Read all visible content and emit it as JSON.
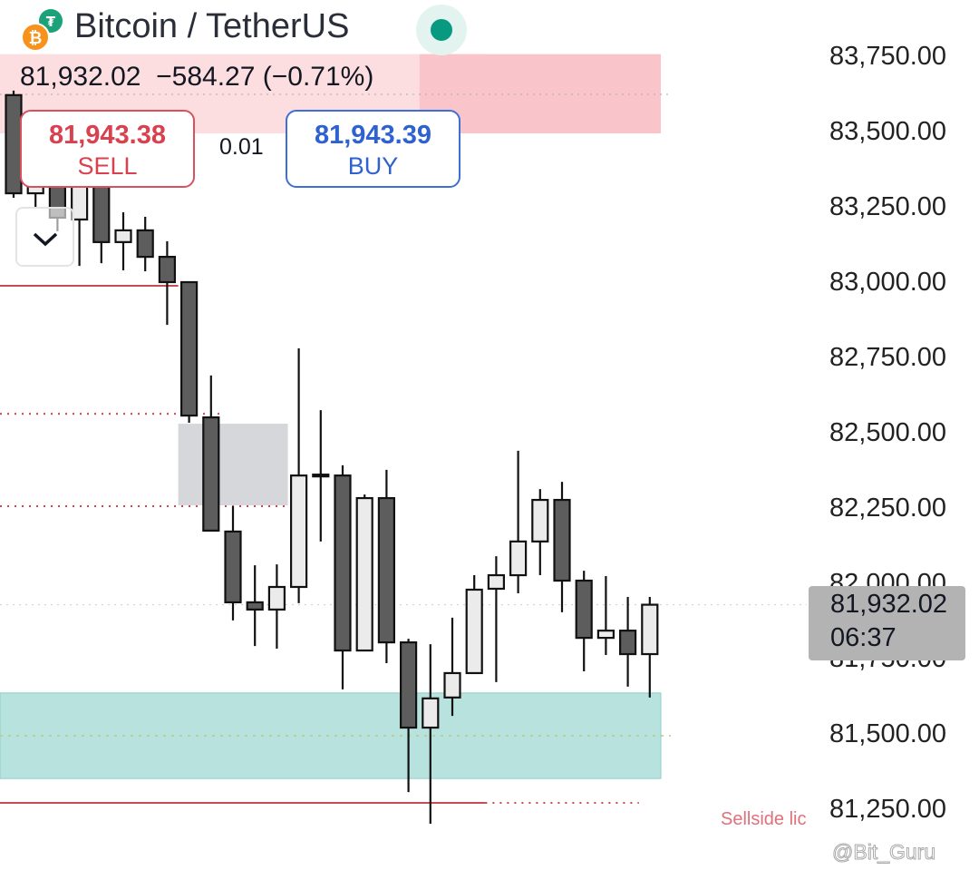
{
  "header": {
    "title": "Bitcoin / TetherUS",
    "base_icon": "bitcoin-icon",
    "quote_icon": "tether-icon",
    "status_color": "#089981"
  },
  "quote": {
    "last": "81,932.02",
    "change": "−584.27",
    "change_pct": "(−0.71%)"
  },
  "trade": {
    "sell_price": "81,943.38",
    "sell_label": "SELL",
    "buy_price": "81,943.39",
    "buy_label": "BUY",
    "quantity": "0.01"
  },
  "price_tag": {
    "price": "81,932.02",
    "countdown": "06:37"
  },
  "annotation": "Sellside lic",
  "watermark": "@Bit_Guru",
  "colors": {
    "bear": "#5d5d5d",
    "bull": "#ebebeb",
    "supply": "#f9c5ca",
    "demand": "#b8e2dd",
    "level": "#c94a55",
    "imbalance": "#d6d7da"
  },
  "chart_data": {
    "type": "candlestick",
    "ylim": [
      81150,
      83800
    ],
    "y_ticks": [
      83750,
      83500,
      83250,
      83000,
      82750,
      82500,
      82250,
      82000,
      81750,
      81500,
      81250
    ],
    "y_tick_labels": [
      "83,750.00",
      "83,500.00",
      "83,250.00",
      "83,000.00",
      "82,750.00",
      "82,500.00",
      "82,250.00",
      "82,000.00",
      "81,750.00",
      "81,500.00",
      "81,250.00"
    ],
    "last_price": 81932.02,
    "candles": [
      {
        "o": 83624,
        "h": 83639,
        "l": 83283,
        "c": 83298
      },
      {
        "o": 83298,
        "h": 83352,
        "l": 83253,
        "c": 83322
      },
      {
        "o": 83337,
        "h": 83368,
        "l": 83172,
        "c": 83217
      },
      {
        "o": 83211,
        "h": 83352,
        "l": 83057,
        "c": 83322
      },
      {
        "o": 83337,
        "h": 83352,
        "l": 83066,
        "c": 83136
      },
      {
        "o": 83136,
        "h": 83235,
        "l": 83042,
        "c": 83175
      },
      {
        "o": 83175,
        "h": 83220,
        "l": 83039,
        "c": 83087
      },
      {
        "o": 83087,
        "h": 83139,
        "l": 82861,
        "c": 83003
      },
      {
        "o": 83003,
        "h": 83003,
        "l": 82536,
        "c": 82560
      },
      {
        "o": 82554,
        "h": 82693,
        "l": 82178,
        "c": 82178
      },
      {
        "o": 82175,
        "h": 82259,
        "l": 81880,
        "c": 81940
      },
      {
        "o": 81940,
        "h": 82063,
        "l": 81795,
        "c": 81916
      },
      {
        "o": 81916,
        "h": 82066,
        "l": 81786,
        "c": 81991
      },
      {
        "o": 81991,
        "h": 82783,
        "l": 81937,
        "c": 82361
      },
      {
        "o": 82364,
        "h": 82578,
        "l": 82142,
        "c": 82364
      },
      {
        "o": 82361,
        "h": 82395,
        "l": 81651,
        "c": 81780
      },
      {
        "o": 81780,
        "h": 82298,
        "l": 81780,
        "c": 82286
      },
      {
        "o": 82286,
        "h": 82380,
        "l": 81738,
        "c": 81807
      },
      {
        "o": 81807,
        "h": 81819,
        "l": 81310,
        "c": 81524
      },
      {
        "o": 81524,
        "h": 81801,
        "l": 81205,
        "c": 81621
      },
      {
        "o": 81624,
        "h": 81889,
        "l": 81563,
        "c": 81705
      },
      {
        "o": 81705,
        "h": 82030,
        "l": 81705,
        "c": 81982
      },
      {
        "o": 81985,
        "h": 82093,
        "l": 81675,
        "c": 82030
      },
      {
        "o": 82030,
        "h": 82443,
        "l": 81970,
        "c": 82142
      },
      {
        "o": 82142,
        "h": 82316,
        "l": 82030,
        "c": 82280
      },
      {
        "o": 82280,
        "h": 82340,
        "l": 81907,
        "c": 82012
      },
      {
        "o": 82012,
        "h": 82045,
        "l": 81711,
        "c": 81822
      },
      {
        "o": 81822,
        "h": 82027,
        "l": 81765,
        "c": 81846
      },
      {
        "o": 81846,
        "h": 81958,
        "l": 81660,
        "c": 81768
      },
      {
        "o": 81768,
        "h": 81958,
        "l": 81624,
        "c": 81932.02
      }
    ],
    "zones": [
      {
        "kind": "supply",
        "top": 83760,
        "bottom": 83497,
        "from": 0,
        "to": 22
      },
      {
        "kind": "supply-strong",
        "top": 83760,
        "bottom": 83497,
        "from": 19,
        "to": 30
      },
      {
        "kind": "imbalance",
        "top": 82533,
        "bottom": 82262,
        "from": 8,
        "to": 13
      },
      {
        "kind": "demand",
        "top": 81639,
        "bottom": 81355,
        "from": 0,
        "to": 30
      }
    ],
    "levels": [
      {
        "price": 82991,
        "style": "solid",
        "from": 0,
        "to": 8
      },
      {
        "price": 82566,
        "style": "dotted",
        "from": 0,
        "to": 10
      },
      {
        "price": 82259,
        "style": "dotted",
        "from": 0,
        "to": 13
      },
      {
        "price": 81274,
        "style": "solid",
        "from": 0,
        "to": 22
      },
      {
        "price": 81274,
        "style": "dotted",
        "from": 22,
        "to": 29
      }
    ]
  }
}
